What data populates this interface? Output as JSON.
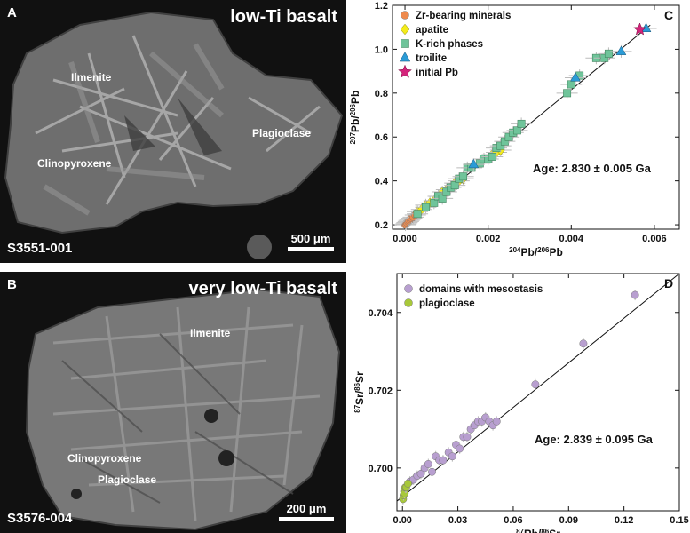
{
  "panel_a": {
    "letter": "A",
    "title": "low-Ti basalt",
    "sample_id": "S3551-001",
    "scale_label": "500 μm",
    "minerals": {
      "ilmenite": "Ilmenite",
      "plagioclase": "Plagioclase",
      "clinopyroxene": "Clinopyroxene"
    }
  },
  "panel_b": {
    "letter": "B",
    "title": "very low-Ti basalt",
    "sample_id": "S3576-004",
    "scale_label": "200 μm",
    "minerals": {
      "ilmenite": "Ilmenite",
      "clinopyroxene": "Clinopyroxene",
      "plagioclase": "Plagioclase"
    }
  },
  "colors": {
    "zr": "#ee8a4e",
    "apatite": "#f4ec1c",
    "krich": "#6fc49a",
    "troilite": "#2b9bd6",
    "initial": "#d4237b",
    "domains": "#b89fd0",
    "plagioclase": "#a8c83a"
  },
  "chart_data": [
    {
      "type": "scatter",
      "panel": "C",
      "age": "Age: 2.830 ± 0.005 Ga",
      "xlabel_parts": [
        "204",
        "Pb/",
        "206",
        "Pb"
      ],
      "ylabel_parts": [
        "207",
        "Pb/",
        "206",
        "Pb"
      ],
      "xlim": [
        -0.0003,
        0.0066
      ],
      "ylim": [
        0.18,
        1.2
      ],
      "x_ticks": [
        0,
        0.002,
        0.004,
        0.006
      ],
      "x_tick_labels": [
        "0.000",
        "0.002",
        "0.004",
        "0.006"
      ],
      "y_ticks": [
        0.2,
        0.4,
        0.6,
        0.8,
        1.0,
        1.2
      ],
      "y_tick_labels": [
        "0.2",
        "0.4",
        "0.6",
        "0.8",
        "1.0",
        "1.2"
      ],
      "fit_line": [
        [
          0.0,
          0.195
        ],
        [
          0.0059,
          1.11
        ]
      ],
      "series": [
        {
          "name": "Zr-bearing minerals",
          "marker": "circle",
          "color_key": "zr",
          "x": [
            1e-05,
            3e-05,
            5e-05,
            8e-05,
            0.0001,
            0.00013,
            0.00016,
            0.0002,
            0.00025
          ],
          "y": [
            0.2,
            0.205,
            0.21,
            0.215,
            0.22,
            0.225,
            0.23,
            0.235,
            0.245
          ]
        },
        {
          "name": "apatite",
          "marker": "diamond",
          "color_key": "apatite",
          "x": [
            0.0003,
            0.0004,
            0.0005,
            0.0006,
            0.0007,
            0.0008,
            0.0009,
            0.001,
            0.0011,
            0.0012,
            0.0013,
            0.0014,
            0.0021,
            0.0022,
            0.0023
          ],
          "y": [
            0.26,
            0.27,
            0.29,
            0.3,
            0.31,
            0.33,
            0.35,
            0.36,
            0.37,
            0.39,
            0.4,
            0.41,
            0.52,
            0.53,
            0.54
          ]
        },
        {
          "name": "K-rich phases",
          "marker": "square",
          "color_key": "krich",
          "x": [
            0.0003,
            0.0005,
            0.0007,
            0.0008,
            0.0009,
            0.001,
            0.0011,
            0.0012,
            0.0013,
            0.0014,
            0.0015,
            0.0016,
            0.0018,
            0.0019,
            0.002,
            0.0021,
            0.0022,
            0.0023,
            0.0024,
            0.0025,
            0.0026,
            0.0027,
            0.0028,
            0.0039,
            0.004,
            0.0042,
            0.0046,
            0.0048,
            0.0049
          ],
          "y": [
            0.25,
            0.28,
            0.3,
            0.33,
            0.32,
            0.35,
            0.37,
            0.38,
            0.41,
            0.42,
            0.46,
            0.46,
            0.48,
            0.5,
            0.5,
            0.51,
            0.55,
            0.56,
            0.58,
            0.6,
            0.62,
            0.63,
            0.66,
            0.8,
            0.84,
            0.88,
            0.96,
            0.96,
            0.98
          ]
        },
        {
          "name": "troilite",
          "marker": "triangle",
          "color_key": "troilite",
          "x": [
            0.00165,
            0.0041,
            0.0052,
            0.0058
          ],
          "y": [
            0.475,
            0.87,
            0.99,
            1.095
          ]
        },
        {
          "name": "initial Pb",
          "marker": "star",
          "color_key": "initial",
          "x": [
            0.00565
          ],
          "y": [
            1.09
          ]
        }
      ]
    },
    {
      "type": "scatter",
      "panel": "D",
      "age": "Age: 2.839 ± 0.095 Ga",
      "xlabel_parts": [
        "87",
        "Rb/",
        "86",
        "Sr"
      ],
      "ylabel_parts": [
        "87",
        "Sr/",
        "86",
        "Sr"
      ],
      "xlim": [
        -0.003,
        0.15
      ],
      "ylim": [
        0.6989,
        0.705
      ],
      "x_ticks": [
        0,
        0.03,
        0.06,
        0.09,
        0.12,
        0.15
      ],
      "x_tick_labels": [
        "0.00",
        "0.03",
        "0.06",
        "0.09",
        "0.12",
        "0.15"
      ],
      "y_ticks": [
        0.7,
        0.702,
        0.704
      ],
      "y_tick_labels": [
        "0.700",
        "0.702",
        "0.704"
      ],
      "fit_line": [
        [
          -0.003,
          0.69915
        ],
        [
          0.15,
          0.705
        ]
      ],
      "series": [
        {
          "name": "domains with mesostasis",
          "marker": "circle",
          "color_key": "domains",
          "x": [
            0.004,
            0.006,
            0.008,
            0.01,
            0.012,
            0.014,
            0.016,
            0.018,
            0.02,
            0.022,
            0.025,
            0.027,
            0.029,
            0.031,
            0.033,
            0.035,
            0.037,
            0.039,
            0.041,
            0.043,
            0.045,
            0.047,
            0.049,
            0.051,
            0.072,
            0.098,
            0.126
          ],
          "y": [
            0.69965,
            0.6997,
            0.6998,
            0.69985,
            0.7,
            0.7001,
            0.6999,
            0.7003,
            0.7002,
            0.7002,
            0.7004,
            0.7003,
            0.7006,
            0.7005,
            0.7008,
            0.7008,
            0.701,
            0.7011,
            0.7012,
            0.7012,
            0.7013,
            0.7012,
            0.7011,
            0.7012,
            0.70215,
            0.7032,
            0.70445
          ]
        },
        {
          "name": "plagioclase",
          "marker": "circle",
          "color_key": "plagioclase",
          "x": [
            0.0003,
            0.0006,
            0.0009,
            0.0012,
            0.0015,
            0.002,
            0.003
          ],
          "y": [
            0.6992,
            0.6993,
            0.6994,
            0.69935,
            0.6995,
            0.6995,
            0.6996
          ]
        }
      ]
    }
  ]
}
